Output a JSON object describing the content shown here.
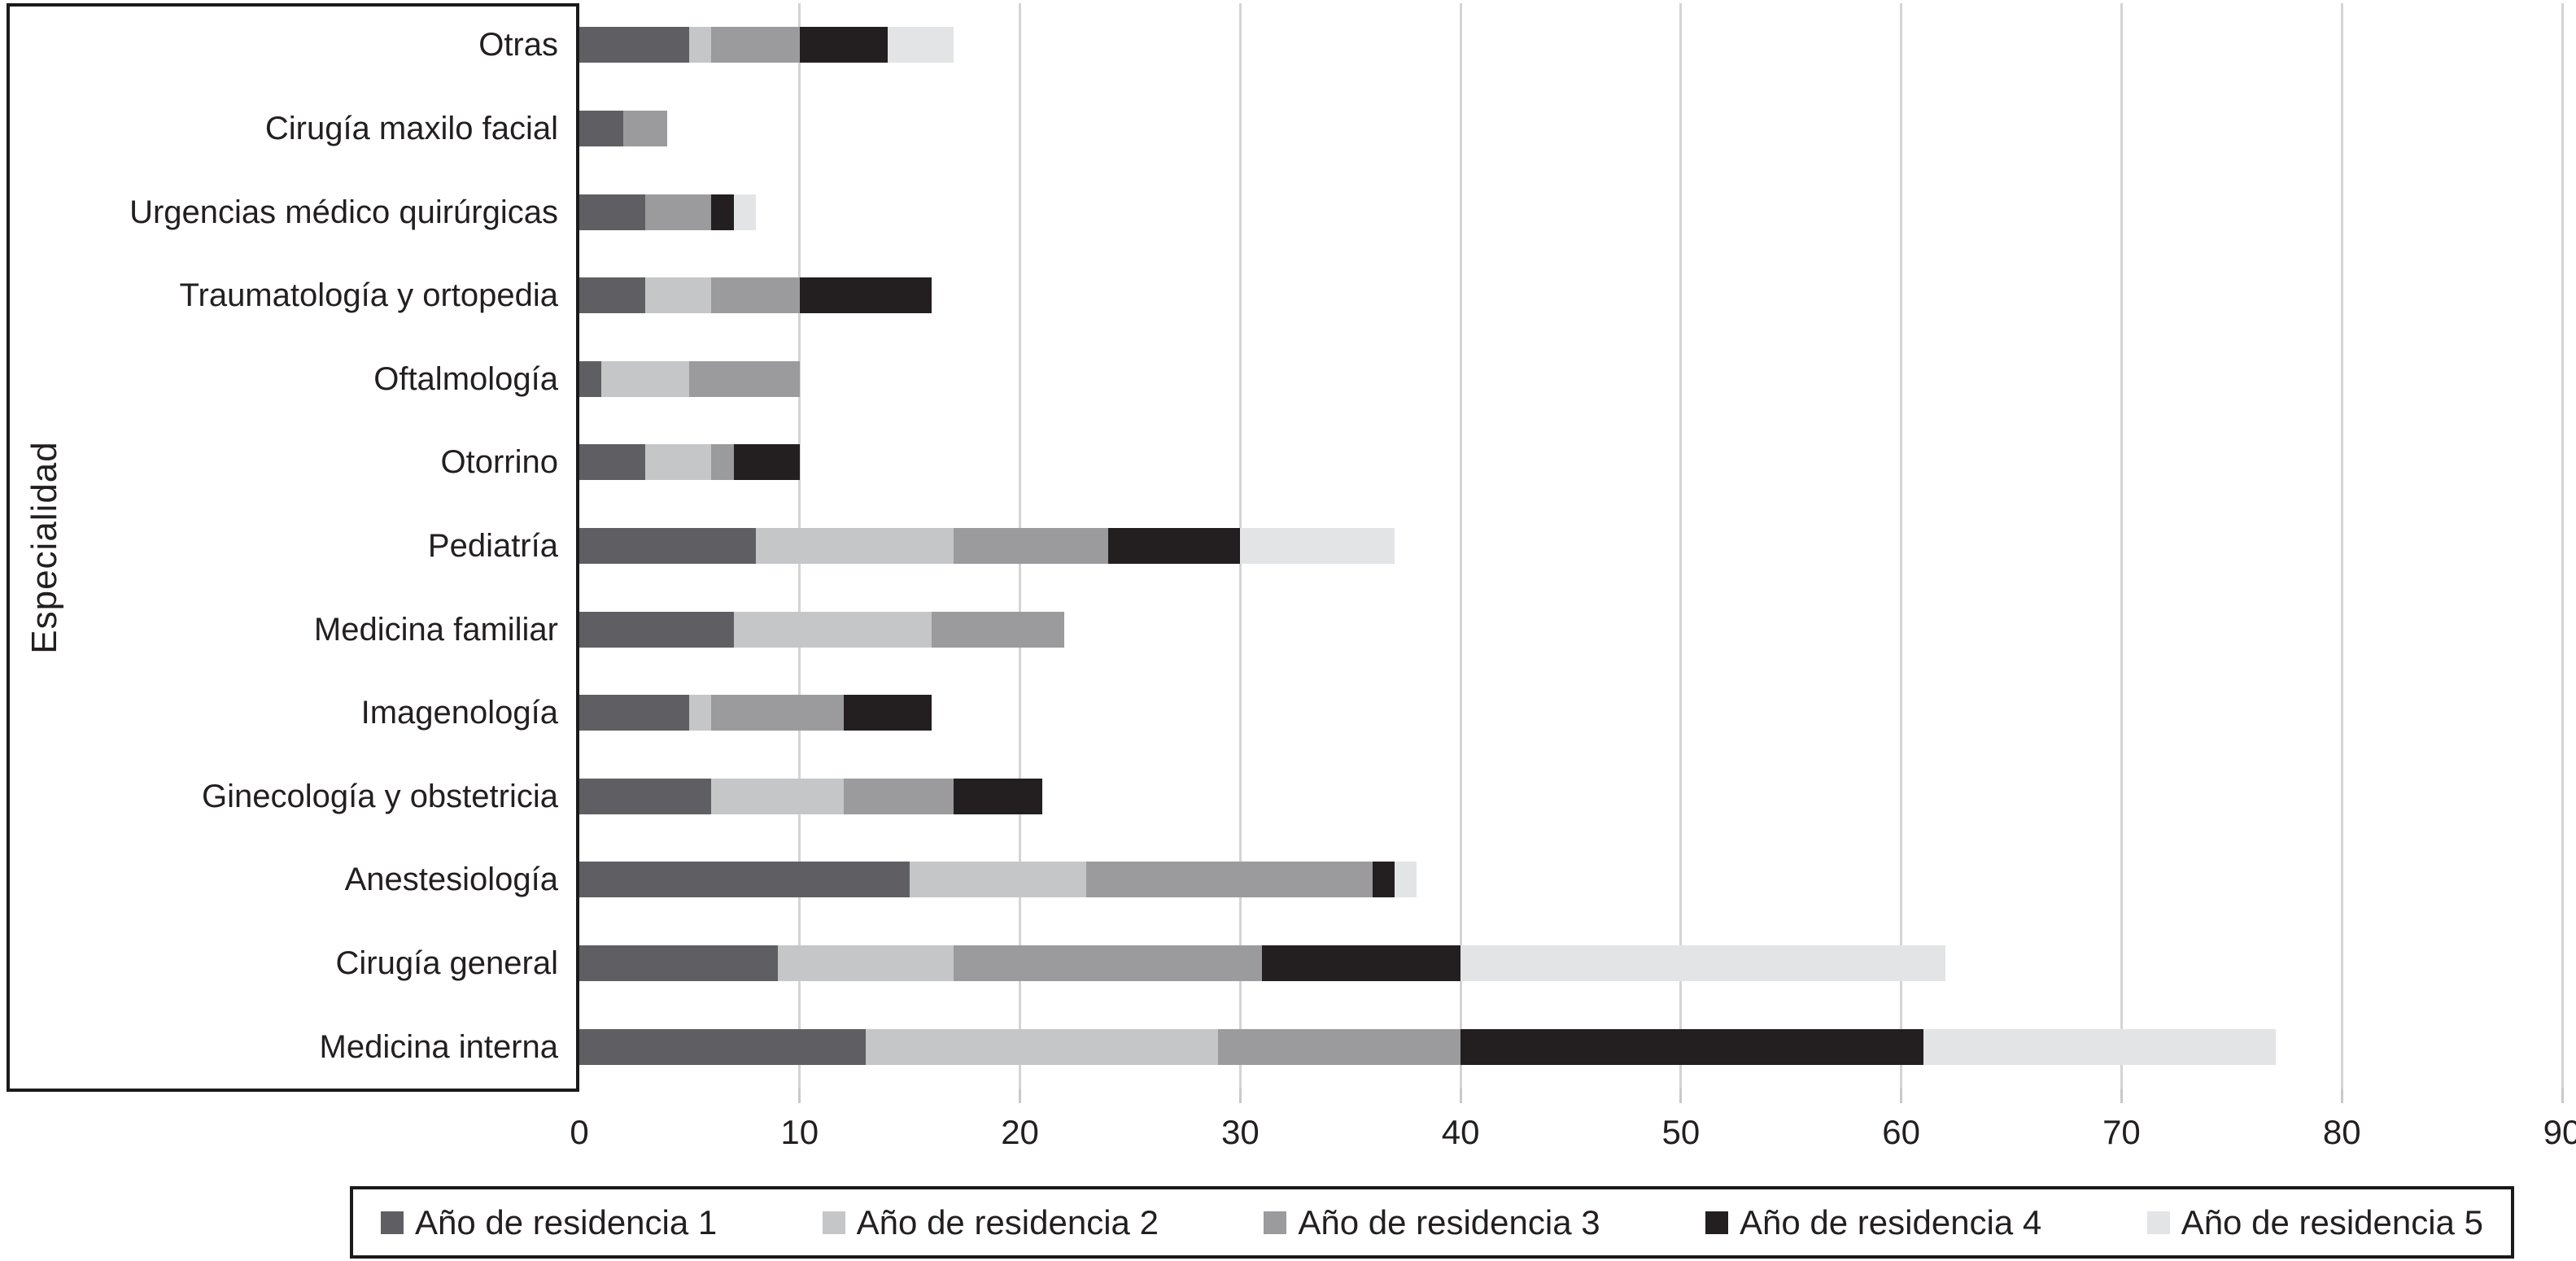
{
  "chart_data": {
    "type": "bar",
    "orientation": "horizontal",
    "stacked": true,
    "title": "",
    "xlabel": "",
    "ylabel": "Especialidad",
    "xlim": [
      0,
      90
    ],
    "x_ticks": [
      0,
      10,
      20,
      30,
      40,
      50,
      60,
      70,
      80,
      90
    ],
    "grid": "vertical",
    "legend_position": "bottom",
    "categories": [
      "Otras",
      "Cirugía maxilo facial",
      "Urgencias médico quirúrgicas",
      "Traumatología y ortopedia",
      "Oftalmología",
      "Otorrino",
      "Pediatría",
      "Medicina familiar",
      "Imagenología",
      "Ginecología y obstetricia",
      "Anestesiología",
      "Cirugía general",
      "Medicina interna"
    ],
    "series": [
      {
        "name": "Año de residencia 1",
        "color": "#5f5f63",
        "values": [
          5,
          2,
          3,
          3,
          1,
          3,
          8,
          7,
          5,
          6,
          15,
          9,
          13
        ]
      },
      {
        "name": "Año de residencia 2",
        "color": "#c5c6c8",
        "values": [
          1,
          0,
          0,
          3,
          4,
          3,
          9,
          9,
          1,
          6,
          8,
          8,
          16
        ]
      },
      {
        "name": "Año de residencia 3",
        "color": "#9b9b9d",
        "values": [
          4,
          2,
          3,
          4,
          5,
          1,
          7,
          6,
          6,
          5,
          13,
          14,
          11
        ]
      },
      {
        "name": "Año de residencia 4",
        "color": "#231f20",
        "values": [
          4,
          0,
          1,
          6,
          0,
          3,
          6,
          0,
          4,
          4,
          1,
          9,
          21
        ]
      },
      {
        "name": "Año de residencia 5",
        "color": "#e3e4e6",
        "values": [
          3,
          0,
          1,
          0,
          0,
          0,
          7,
          0,
          0,
          0,
          1,
          22,
          16
        ]
      }
    ],
    "colors": {
      "gridline": "#d4d4d4",
      "axis_box_border": "#1a1a1a",
      "text": "#231f20",
      "background": "#ffffff"
    }
  }
}
